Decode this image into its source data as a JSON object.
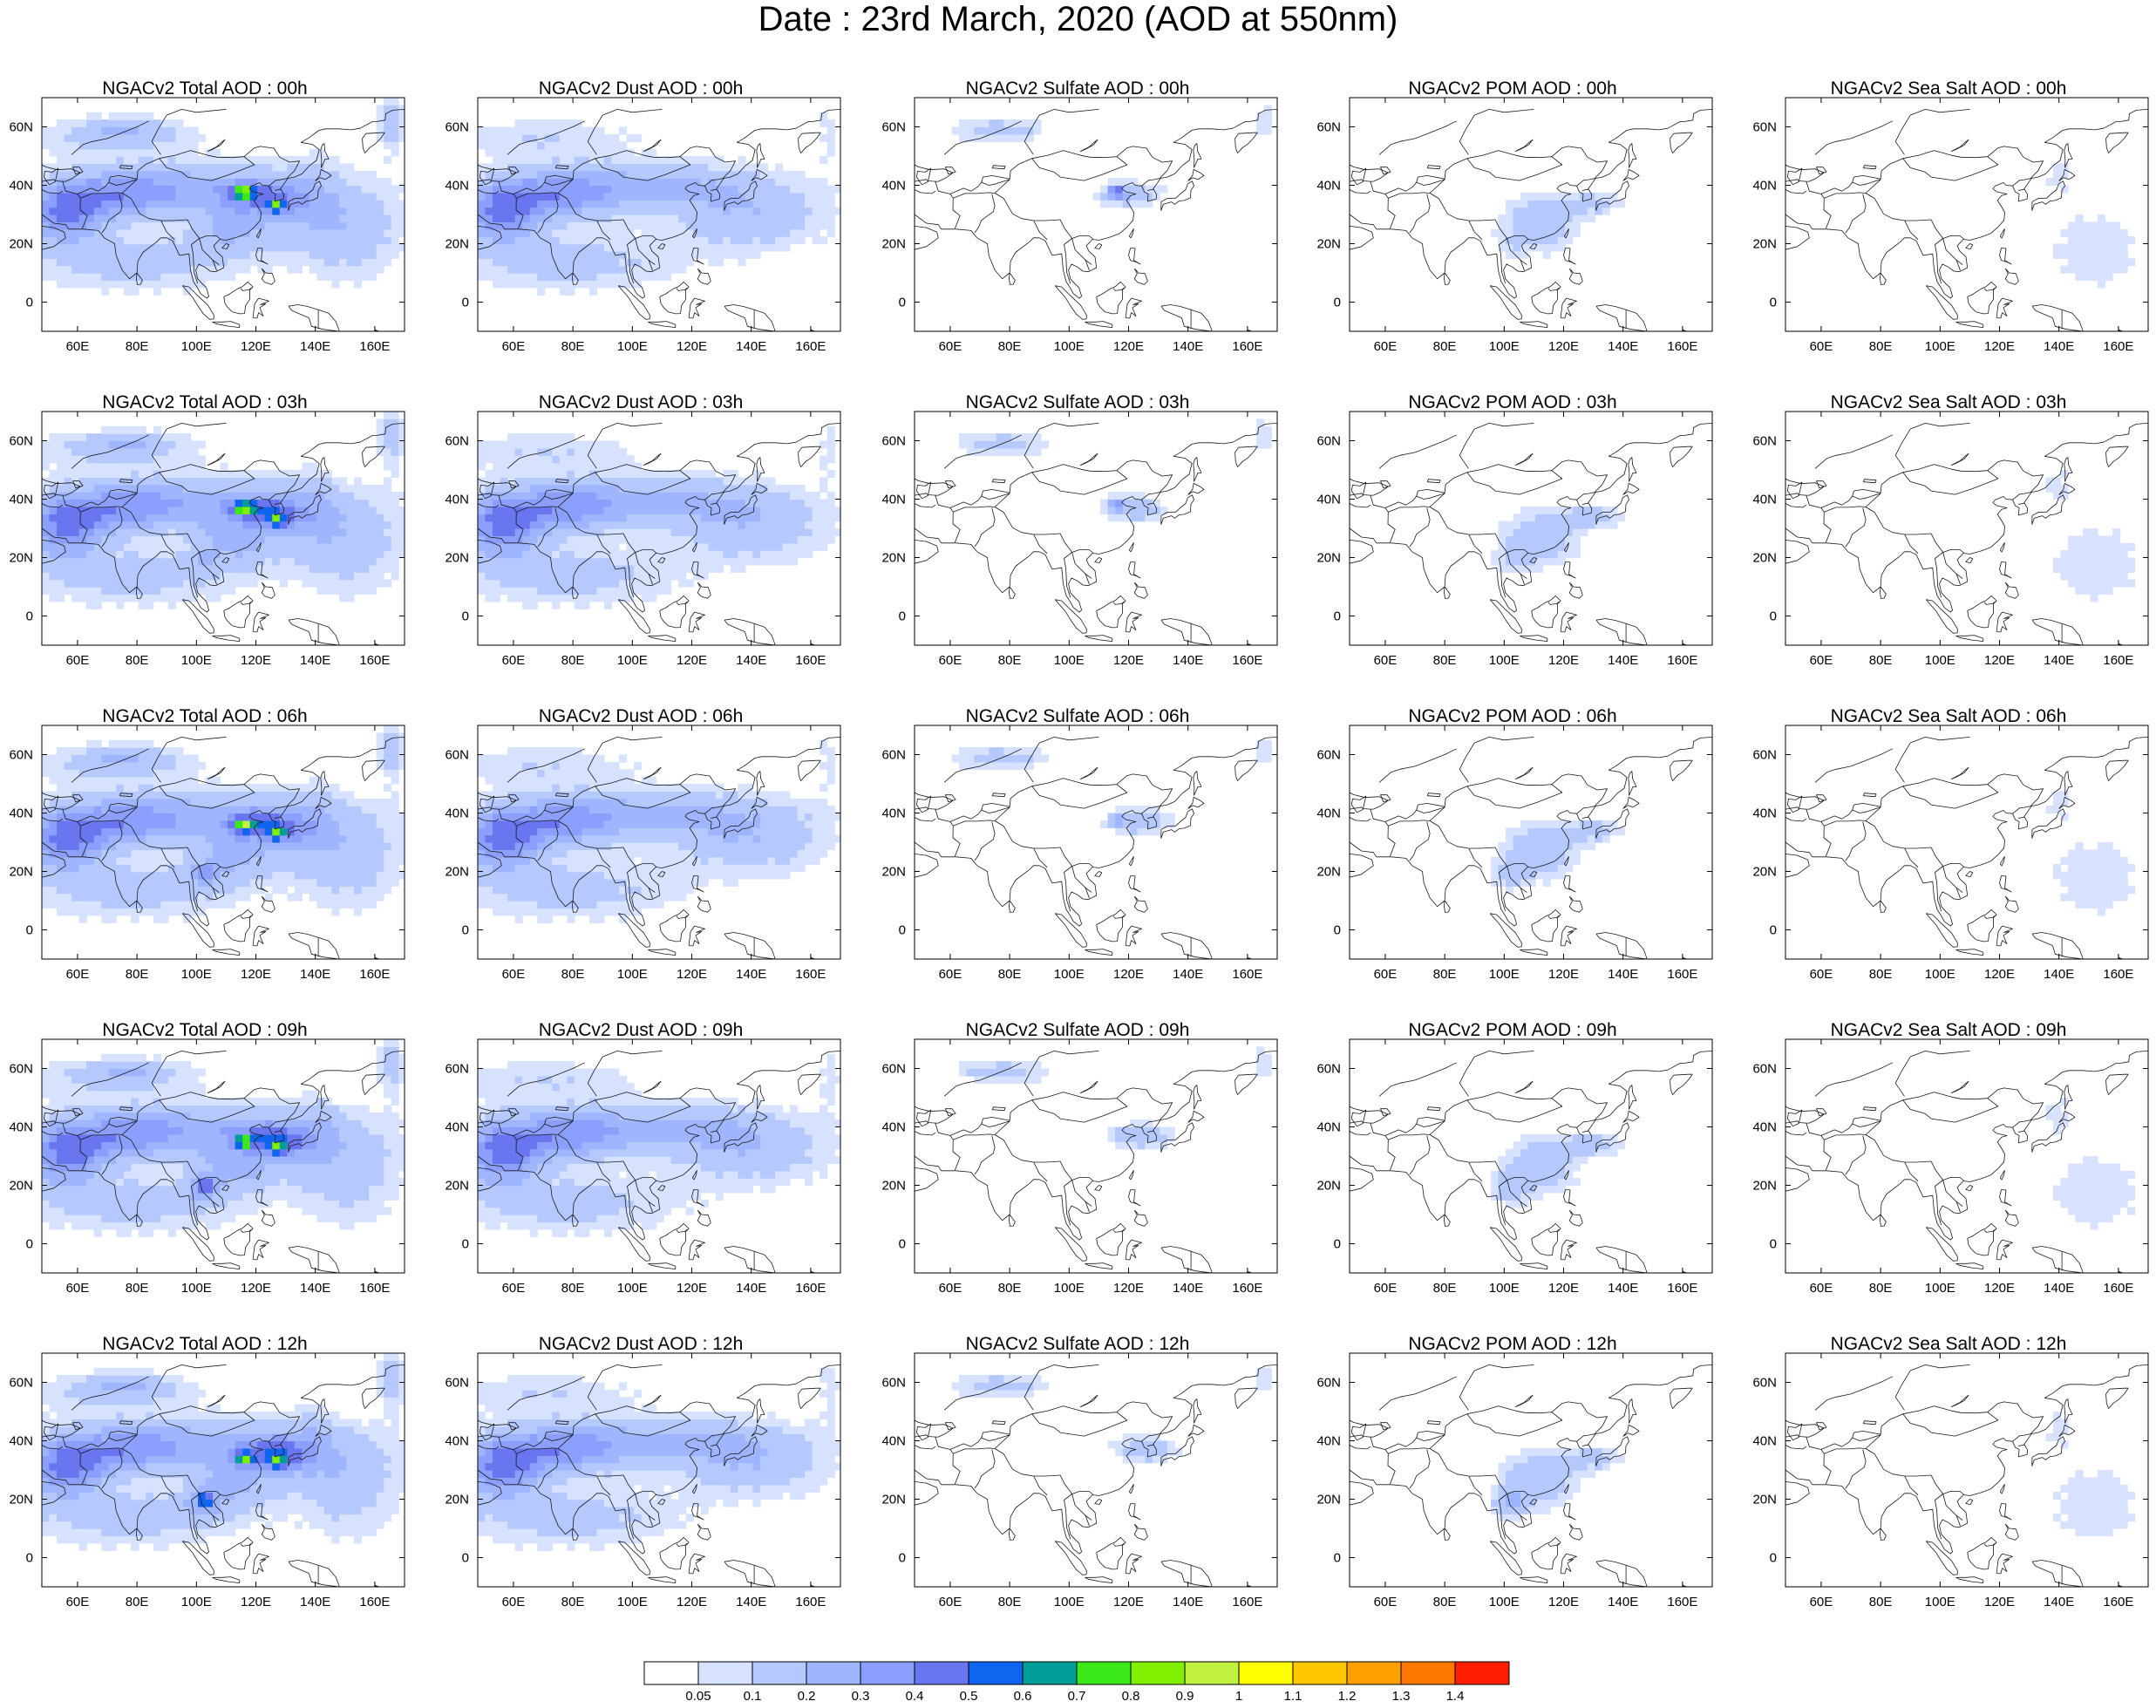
{
  "title": "Date : 23rd March, 2020 (AOD at 550nm)",
  "map": {
    "lon_range": [
      48,
      170
    ],
    "lat_range": [
      -10,
      70
    ],
    "lon_ticks": [
      60,
      80,
      100,
      120,
      140,
      160
    ],
    "lon_tick_labels": [
      "60E",
      "80E",
      "100E",
      "120E",
      "140E",
      "160E"
    ],
    "lat_ticks": [
      0,
      20,
      40,
      60
    ],
    "lat_tick_labels": [
      "0",
      "20N",
      "40N",
      "60N"
    ]
  },
  "colorbar": {
    "labels": [
      "0.05",
      "0.1",
      "0.2",
      "0.3",
      "0.4",
      "0.5",
      "0.6",
      "0.7",
      "0.8",
      "0.9",
      "1",
      "1.1",
      "1.2",
      "1.3",
      "1.4"
    ],
    "colors": [
      "#ffffff",
      "#d6e2ff",
      "#b5c9ff",
      "#a0b5ff",
      "#8c9fff",
      "#6a75f0",
      "#1065f0",
      "#009e96",
      "#3be81a",
      "#80f000",
      "#c0f040",
      "#ffff00",
      "#ffc800",
      "#ffa000",
      "#ff7800",
      "#ff1e00"
    ]
  },
  "panels": [
    {
      "title": "NGACv2 Total AOD : 00h",
      "species": "total",
      "hour": 0
    },
    {
      "title": "NGACv2 Dust AOD : 00h",
      "species": "dust",
      "hour": 0
    },
    {
      "title": "NGACv2 Sulfate AOD : 00h",
      "species": "sulfate",
      "hour": 0
    },
    {
      "title": "NGACv2 POM AOD : 00h",
      "species": "pom",
      "hour": 0
    },
    {
      "title": "NGACv2 Sea Salt AOD : 00h",
      "species": "seasalt",
      "hour": 0
    },
    {
      "title": "NGACv2 Total AOD : 03h",
      "species": "total",
      "hour": 3
    },
    {
      "title": "NGACv2 Dust AOD : 03h",
      "species": "dust",
      "hour": 3
    },
    {
      "title": "NGACv2 Sulfate AOD : 03h",
      "species": "sulfate",
      "hour": 3
    },
    {
      "title": "NGACv2 POM AOD : 03h",
      "species": "pom",
      "hour": 3
    },
    {
      "title": "NGACv2 Sea Salt AOD : 03h",
      "species": "seasalt",
      "hour": 3
    },
    {
      "title": "NGACv2 Total AOD : 06h",
      "species": "total",
      "hour": 6
    },
    {
      "title": "NGACv2 Dust AOD : 06h",
      "species": "dust",
      "hour": 6
    },
    {
      "title": "NGACv2 Sulfate AOD : 06h",
      "species": "sulfate",
      "hour": 6
    },
    {
      "title": "NGACv2 POM AOD : 06h",
      "species": "pom",
      "hour": 6
    },
    {
      "title": "NGACv2 Sea Salt AOD : 06h",
      "species": "seasalt",
      "hour": 6
    },
    {
      "title": "NGACv2 Total AOD : 09h",
      "species": "total",
      "hour": 9
    },
    {
      "title": "NGACv2 Dust AOD : 09h",
      "species": "dust",
      "hour": 9
    },
    {
      "title": "NGACv2 Sulfate AOD : 09h",
      "species": "sulfate",
      "hour": 9
    },
    {
      "title": "NGACv2 POM AOD : 09h",
      "species": "pom",
      "hour": 9
    },
    {
      "title": "NGACv2 Sea Salt  AOD : 09h",
      "species": "seasalt",
      "hour": 9
    },
    {
      "title": "NGACv2 Total AOD  : 12h",
      "species": "total",
      "hour": 12
    },
    {
      "title": "NGACv2 Dust AOD : 12h",
      "species": "dust",
      "hour": 12
    },
    {
      "title": "NGACv2 Sulfate AOD : 12h",
      "species": "sulfate",
      "hour": 12
    },
    {
      "title": "NGACv2 POM  AOD : 12h",
      "species": "pom",
      "hour": 12
    },
    {
      "title": "NGACv2 Sea Salt  AOD : 12h",
      "species": "seasalt",
      "hour": 12
    }
  ]
}
